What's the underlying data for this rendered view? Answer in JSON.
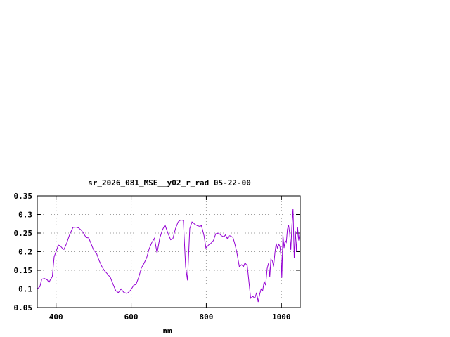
{
  "chart_data": {
    "type": "line",
    "title": "sr_2026_081_MSE__y02_r_rad 05-22-00",
    "xlabel": "nm",
    "ylabel": "",
    "xlim": [
      350,
      1050
    ],
    "ylim": [
      0.05,
      0.35
    ],
    "xticks": [
      400,
      600,
      800,
      1000
    ],
    "yticks": [
      0.05,
      0.1,
      0.15,
      0.2,
      0.25,
      0.3,
      0.35
    ],
    "ytick_labels": [
      "0.05",
      "0.1",
      "0.15",
      "0.2",
      "0.25",
      "0.3",
      "0.35"
    ],
    "grid": true,
    "line_color": "#9400d3",
    "series": [
      {
        "x": [
          350,
          357,
          362,
          369,
          377,
          381,
          385,
          390,
          395,
          402,
          406,
          411,
          416,
          421,
          428,
          436,
          445,
          453,
          460,
          467,
          473,
          480,
          487,
          494,
          500,
          508,
          514,
          521,
          528,
          537,
          545,
          552,
          559,
          566,
          573,
          580,
          588,
          592,
          599,
          607,
          613,
          620,
          627,
          634,
          641,
          648,
          655,
          662,
          669,
          676,
          683,
          690,
          697,
          705,
          711,
          718,
          725,
          732,
          739,
          745,
          750,
          756,
          762,
          765,
          769,
          776,
          783,
          787,
          794,
          799,
          806,
          812,
          819,
          825,
          833,
          840,
          847,
          851,
          856,
          860,
          865,
          871,
          876,
          881,
          888,
          894,
          899,
          903,
          909,
          914,
          918,
          924,
          929,
          934,
          938,
          942,
          946,
          950,
          954,
          958,
          962,
          966,
          969,
          972,
          976,
          979,
          983,
          986,
          989,
          993,
          996,
          999,
          1001,
          1004,
          1007,
          1010,
          1013,
          1016,
          1019,
          1022,
          1025,
          1028,
          1031,
          1034,
          1037,
          1040,
          1043,
          1046,
          1050
        ],
        "y": [
          0.1,
          0.106,
          0.126,
          0.128,
          0.124,
          0.117,
          0.125,
          0.133,
          0.186,
          0.206,
          0.218,
          0.216,
          0.21,
          0.206,
          0.222,
          0.245,
          0.265,
          0.266,
          0.264,
          0.258,
          0.25,
          0.238,
          0.237,
          0.22,
          0.205,
          0.195,
          0.178,
          0.162,
          0.15,
          0.14,
          0.13,
          0.112,
          0.095,
          0.09,
          0.1,
          0.091,
          0.088,
          0.09,
          0.097,
          0.11,
          0.112,
          0.131,
          0.156,
          0.168,
          0.183,
          0.208,
          0.225,
          0.236,
          0.196,
          0.236,
          0.258,
          0.272,
          0.252,
          0.232,
          0.235,
          0.262,
          0.28,
          0.285,
          0.284,
          0.16,
          0.123,
          0.262,
          0.28,
          0.278,
          0.274,
          0.27,
          0.268,
          0.27,
          0.243,
          0.21,
          0.218,
          0.222,
          0.23,
          0.248,
          0.25,
          0.243,
          0.24,
          0.245,
          0.235,
          0.243,
          0.242,
          0.238,
          0.221,
          0.2,
          0.16,
          0.165,
          0.16,
          0.17,
          0.162,
          0.115,
          0.075,
          0.08,
          0.075,
          0.09,
          0.065,
          0.085,
          0.1,
          0.095,
          0.12,
          0.11,
          0.155,
          0.17,
          0.132,
          0.18,
          0.175,
          0.16,
          0.2,
          0.222,
          0.21,
          0.22,
          0.215,
          0.185,
          0.13,
          0.245,
          0.21,
          0.23,
          0.225,
          0.26,
          0.272,
          0.25,
          0.205,
          0.27,
          0.315,
          0.182,
          0.255,
          0.2,
          0.265,
          0.23,
          0.255
        ]
      }
    ]
  }
}
